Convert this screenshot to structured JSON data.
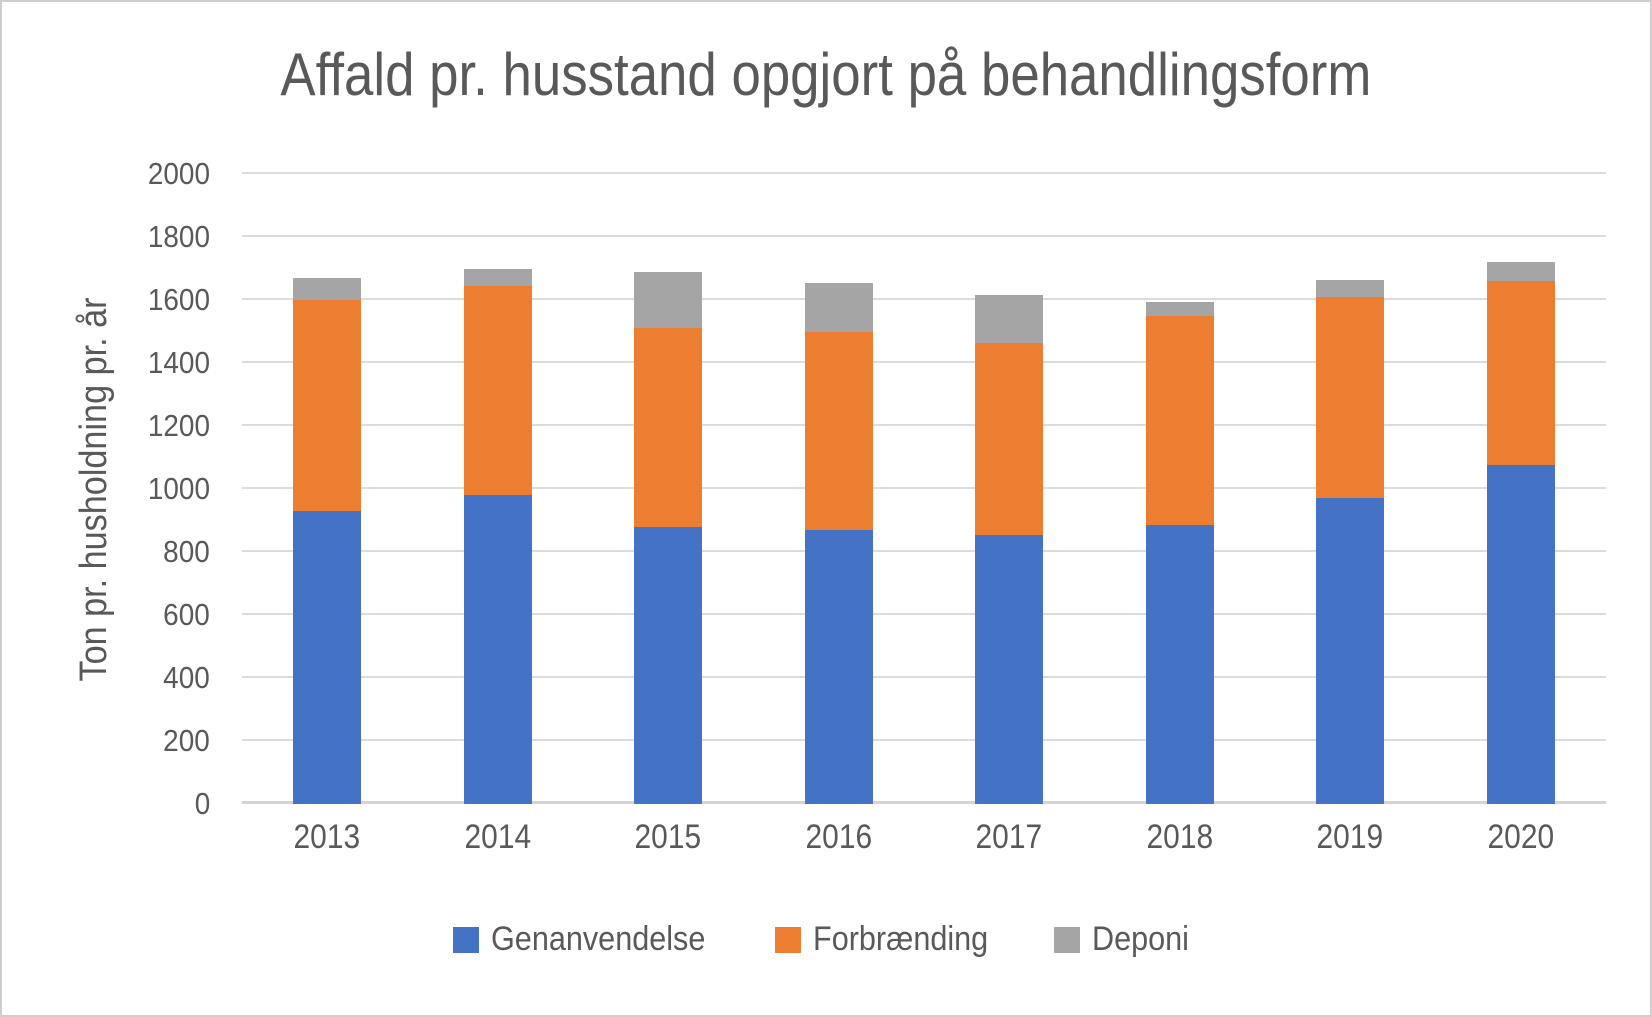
{
  "page": {
    "background": "#ffffff",
    "border_color": "#cfcdcd"
  },
  "chart_data": {
    "type": "bar",
    "stacked": true,
    "title": "Affald pr. husstand opgjort på behandlingsform",
    "xlabel": "",
    "ylabel": "Ton pr. husholdning pr. år",
    "categories": [
      "2013",
      "2014",
      "2015",
      "2016",
      "2017",
      "2018",
      "2019",
      "2020"
    ],
    "series": [
      {
        "name": "Genanvendelse",
        "color": "#4472C4",
        "values": [
          930,
          980,
          880,
          870,
          855,
          885,
          970,
          1075
        ]
      },
      {
        "name": "Forbrænding",
        "color": "#ED7D31",
        "values": [
          670,
          665,
          630,
          630,
          610,
          665,
          640,
          585
        ]
      },
      {
        "name": "Deponi",
        "color": "#A5A5A5",
        "values": [
          70,
          55,
          180,
          155,
          150,
          45,
          55,
          60
        ]
      }
    ],
    "ylim": [
      0,
      2000
    ],
    "ytick_step": 200,
    "ytick_labels": [
      "0",
      "200",
      "400",
      "600",
      "800",
      "1000",
      "1200",
      "1400",
      "1600",
      "1800",
      "2000"
    ],
    "grid": true,
    "legend_position": "bottom",
    "colors": {
      "text": "#595959",
      "gridline": "#dcdcdc"
    }
  }
}
